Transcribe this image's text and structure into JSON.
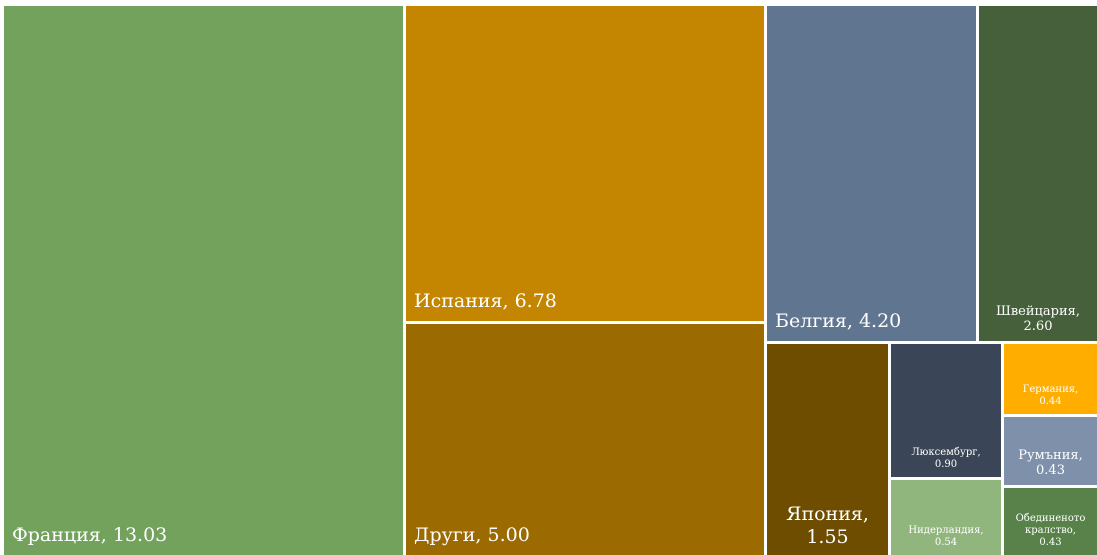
{
  "chart_data": {
    "type": "treemap",
    "title": "",
    "items": [
      {
        "name": "Франция",
        "value": 13.03,
        "value_label": "13.03",
        "color": "#73a25d"
      },
      {
        "name": "Испания",
        "value": 6.78,
        "value_label": "6.78",
        "color": "#c48600"
      },
      {
        "name": "Други",
        "value": 5.0,
        "value_label": "5.00",
        "color": "#9b6a00"
      },
      {
        "name": "Белгия",
        "value": 4.2,
        "value_label": "4.20",
        "color": "#607590"
      },
      {
        "name": "Швейцария",
        "value": 2.6,
        "value_label": "2.60",
        "color": "#45603a"
      },
      {
        "name": "Япония",
        "value": 1.55,
        "value_label": "1.55",
        "color": "#6e4d00"
      },
      {
        "name": "Люксембург",
        "value": 0.9,
        "value_label": "0.90",
        "color": "#3a4657"
      },
      {
        "name": "Нидерландия",
        "value": 0.54,
        "value_label": "0.54",
        "color": "#90b67e"
      },
      {
        "name": "Германия",
        "value": 0.44,
        "value_label": "0.44",
        "color": "#ffae00"
      },
      {
        "name": "Румъния",
        "value": 0.43,
        "value_label": "0.43",
        "color": "#7e90aa"
      },
      {
        "name": "Обединеното кралство",
        "value": 0.43,
        "value_label": "0.43",
        "color": "#58824a"
      }
    ]
  }
}
